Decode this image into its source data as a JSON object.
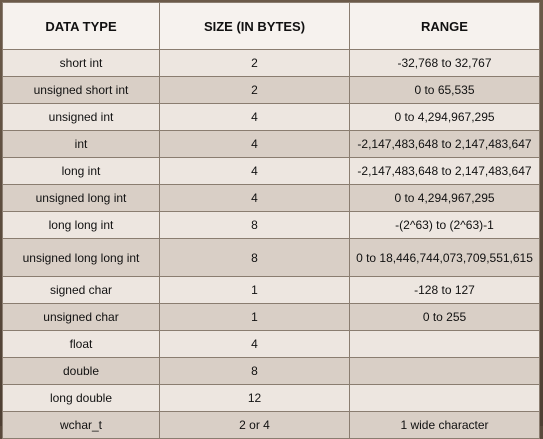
{
  "headers": [
    "DATA TYPE",
    "SIZE (IN BYTES)",
    "RANGE"
  ],
  "rows": [
    {
      "type": "short int",
      "size": "2",
      "range": "-32,768 to 32,767"
    },
    {
      "type": "unsigned short int",
      "size": "2",
      "range": "0 to 65,535"
    },
    {
      "type": "unsigned int",
      "size": "4",
      "range": "0 to 4,294,967,295"
    },
    {
      "type": "int",
      "size": "4",
      "range": "-2,147,483,648 to 2,147,483,647"
    },
    {
      "type": "long int",
      "size": "4",
      "range": "-2,147,483,648 to 2,147,483,647"
    },
    {
      "type": "unsigned long int",
      "size": "4",
      "range": "0 to 4,294,967,295"
    },
    {
      "type": "long long int",
      "size": "8",
      "range": "-(2^63) to (2^63)-1"
    },
    {
      "type": "unsigned long long int",
      "size": "8",
      "range": "0 to 18,446,744,073,709,551,615"
    },
    {
      "type": "signed char",
      "size": "1",
      "range": "-128 to 127"
    },
    {
      "type": "unsigned char",
      "size": "1",
      "range": "0 to 255"
    },
    {
      "type": "float",
      "size": "4",
      "range": ""
    },
    {
      "type": "double",
      "size": "8",
      "range": ""
    },
    {
      "type": "long double",
      "size": "12",
      "range": ""
    },
    {
      "type": "wchar_t",
      "size": "2 or 4",
      "range": "1 wide character"
    }
  ]
}
